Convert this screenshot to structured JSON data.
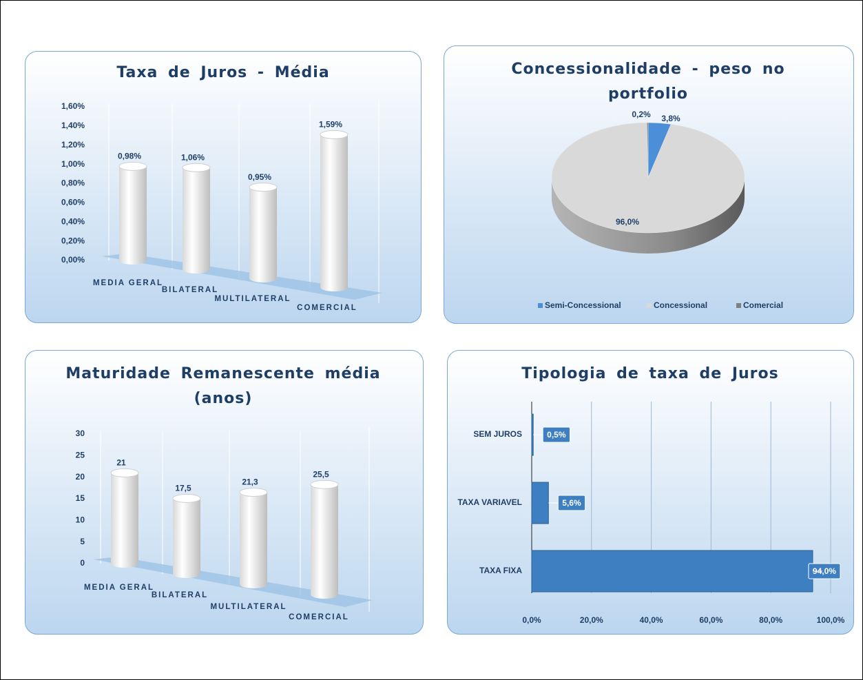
{
  "chart_data": [
    {
      "type": "bar",
      "title": "Taxa de Juros - Média",
      "categories": [
        "MEDIA GERAL",
        "BILATERAL",
        "MULTILATERAL",
        "COMERCIAL"
      ],
      "values": [
        0.98,
        1.06,
        0.95,
        1.59
      ],
      "value_labels": [
        "0,98%",
        "1,06%",
        "0,95%",
        "1,59%"
      ],
      "color": "#ffffff",
      "ylim": [
        0,
        1.6
      ],
      "yticks": [
        {
          "value": 0,
          "label": "0,00%"
        },
        {
          "value": 0.2,
          "label": "0,20%"
        },
        {
          "value": 0.4,
          "label": "0,40%"
        },
        {
          "value": 0.6,
          "label": "0,60%"
        },
        {
          "value": 0.8,
          "label": "0,80%"
        },
        {
          "value": 1.0,
          "label": "1,00%"
        },
        {
          "value": 1.2,
          "label": "1,20%"
        },
        {
          "value": 1.4,
          "label": "1,40%"
        },
        {
          "value": 1.6,
          "label": "1,60%"
        }
      ]
    },
    {
      "type": "pie",
      "title": "Concessionalidade  - peso no portfolio",
      "categories": [
        "Semi-Concessional",
        "Concessional",
        "Comercial"
      ],
      "values": [
        3.8,
        96.0,
        0.2
      ],
      "value_labels": [
        "3,8%",
        "96,0%",
        "0,2%"
      ],
      "colors": [
        "#4a8fd8",
        "#d9d9d9",
        "#7f7f7f"
      ],
      "legend": "bottom"
    },
    {
      "type": "bar",
      "title": "Maturidade Remanescente média (anos)",
      "categories": [
        "MEDIA GERAL",
        "BILATERAL",
        "MULTILATERAL",
        "COMERCIAL"
      ],
      "values": [
        21,
        17.5,
        21.3,
        25.5
      ],
      "value_labels": [
        "21",
        "17,5",
        "21,3",
        "25,5"
      ],
      "color": "#ffffff",
      "ylim": [
        0,
        30
      ],
      "yticks": [
        0,
        5,
        10,
        15,
        20,
        25,
        30
      ]
    },
    {
      "type": "bar",
      "orientation": "horizontal",
      "title": "Tipologia de taxa de Juros",
      "categories": [
        "SEM JUROS",
        "TAXA VARIAVEL",
        "TAXA FIXA"
      ],
      "values": [
        0.5,
        5.6,
        94.0
      ],
      "value_labels": [
        "0,5%",
        "5,6%",
        "94,0%"
      ],
      "color": "#3e7fc1",
      "xlim": [
        0,
        100
      ],
      "xticks": [
        {
          "value": 0,
          "label": "0,0%"
        },
        {
          "value": 20,
          "label": "20,0%"
        },
        {
          "value": 40,
          "label": "40,0%"
        },
        {
          "value": 60,
          "label": "60,0%"
        },
        {
          "value": 80,
          "label": "80,0%"
        },
        {
          "value": 100,
          "label": "100,0%"
        }
      ],
      "grid": true
    }
  ]
}
